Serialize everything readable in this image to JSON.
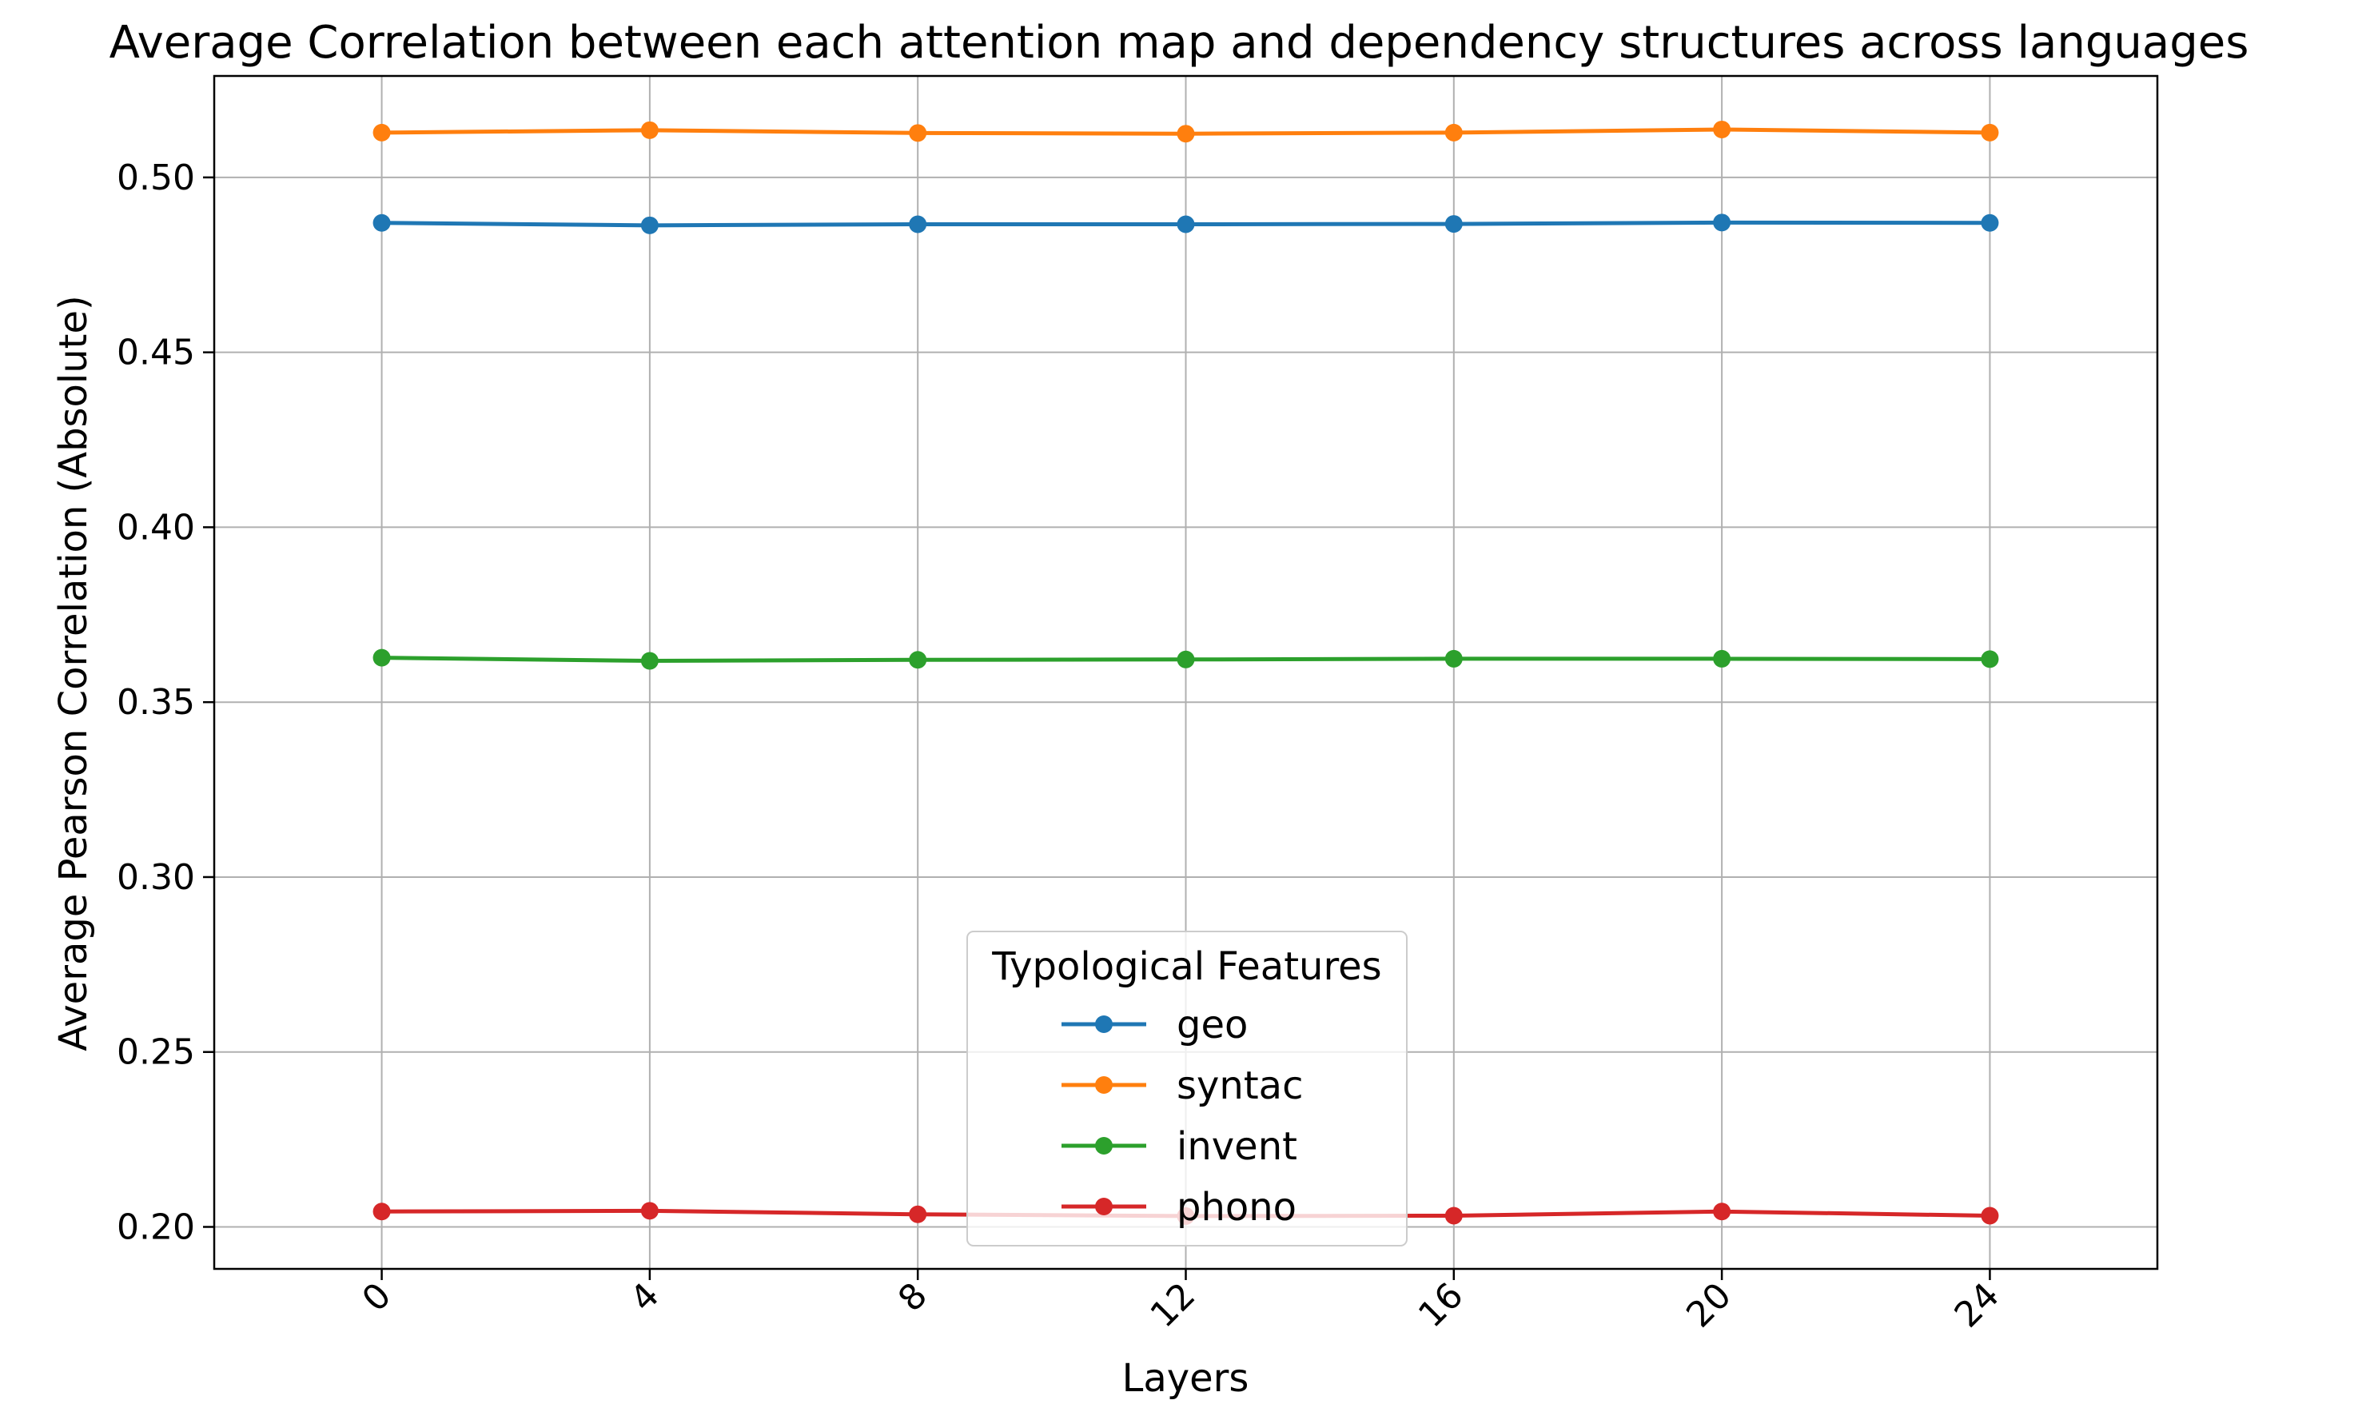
{
  "chart_data": {
    "type": "line",
    "title": "Average Correlation between each attention map and dependency structures across languages",
    "xlabel": "Layers",
    "ylabel": "Average Pearson Correlation (Absolute)",
    "x": [
      0,
      4,
      8,
      12,
      16,
      20,
      24
    ],
    "x_tick_labels": [
      "0",
      "4",
      "8",
      "12",
      "16",
      "20",
      "24"
    ],
    "y_ticks": [
      0.2,
      0.25,
      0.3,
      0.35,
      0.4,
      0.45,
      0.5
    ],
    "y_tick_labels": [
      "0.20",
      "0.25",
      "0.30",
      "0.35",
      "0.40",
      "0.45",
      "0.50"
    ],
    "xlim": [
      -2.5,
      26.5
    ],
    "ylim": [
      0.188,
      0.529
    ],
    "grid": true,
    "legend": {
      "title": "Typological Features",
      "placement": "lower center"
    },
    "series": [
      {
        "name": "geo",
        "color": "#1f77b4",
        "values": [
          0.487,
          0.4863,
          0.4866,
          0.4866,
          0.4867,
          0.4871,
          0.487
        ]
      },
      {
        "name": "syntac",
        "color": "#ff7f0e",
        "values": [
          0.5128,
          0.5135,
          0.5127,
          0.5125,
          0.5128,
          0.5137,
          0.5128
        ]
      },
      {
        "name": "invent",
        "color": "#2ca02c",
        "values": [
          0.3627,
          0.3618,
          0.3621,
          0.3622,
          0.3624,
          0.3624,
          0.3623
        ]
      },
      {
        "name": "phono",
        "color": "#d62728",
        "values": [
          0.2044,
          0.2046,
          0.2036,
          0.2031,
          0.2032,
          0.2044,
          0.2032
        ]
      }
    ]
  }
}
